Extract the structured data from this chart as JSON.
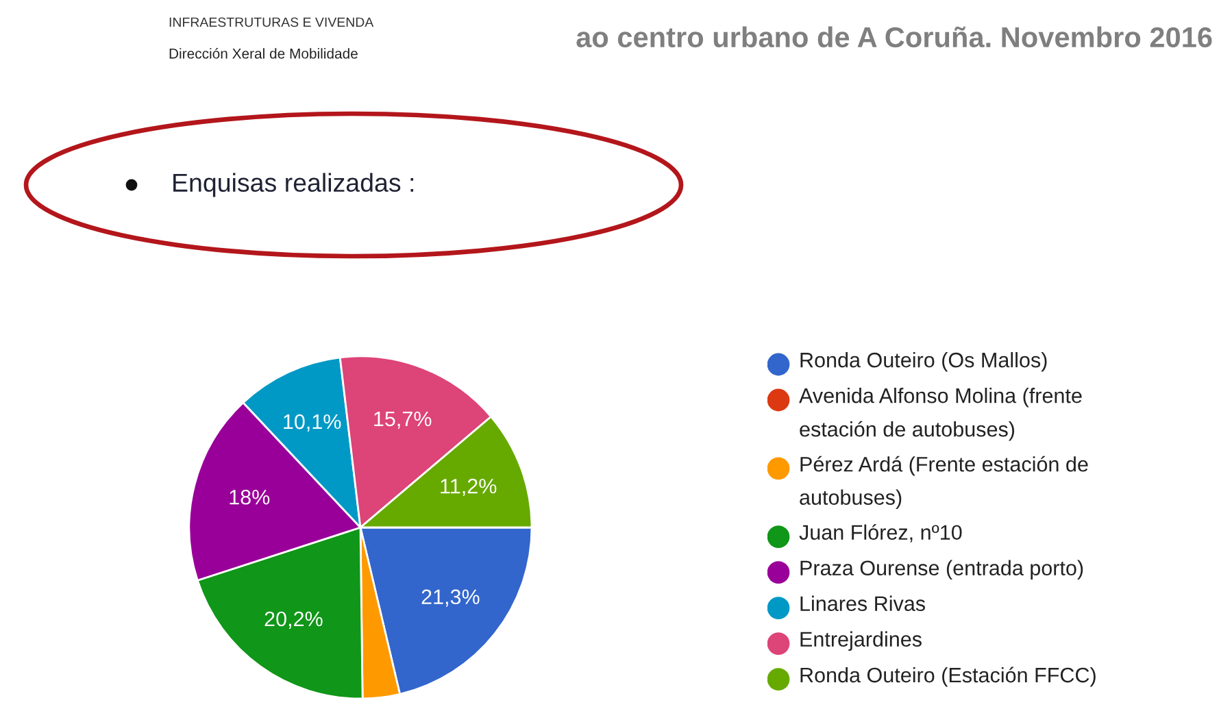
{
  "chart_data": {
    "type": "pie",
    "title": "ao centro urbano de A Coruña. Novembro 2016",
    "annotations": [
      "INFRAESTRUTURAS E VIVENDA",
      "Dirección Xeral de Mobilidade",
      "Enquisas realizadas :"
    ],
    "categories": [
      "Ronda Outeiro (Os Mallos)",
      "Avenida Alfonso Molina (frente estación de autobuses)",
      "Pérez Ardá (Frente estación de autobuses)",
      "Juan Flórez, nº10",
      "Praza Ourense (entrada porto)",
      "Linares Rivas",
      "Entrejardines",
      "Ronda Outeiro (Estación FFCC)"
    ],
    "values": [
      21.3,
      0,
      3.5,
      20.2,
      18,
      10.1,
      15.7,
      11.2
    ],
    "colors": [
      "#3366cc",
      "#dc3912",
      "#ff9900",
      "#109618",
      "#990099",
      "#0099c6",
      "#dd4477",
      "#66aa00"
    ],
    "value_labels": [
      "21,3%",
      null,
      null,
      "20,2%",
      "18%",
      "10,1%",
      "15,7%",
      "11,2%"
    ],
    "legend": "right"
  }
}
